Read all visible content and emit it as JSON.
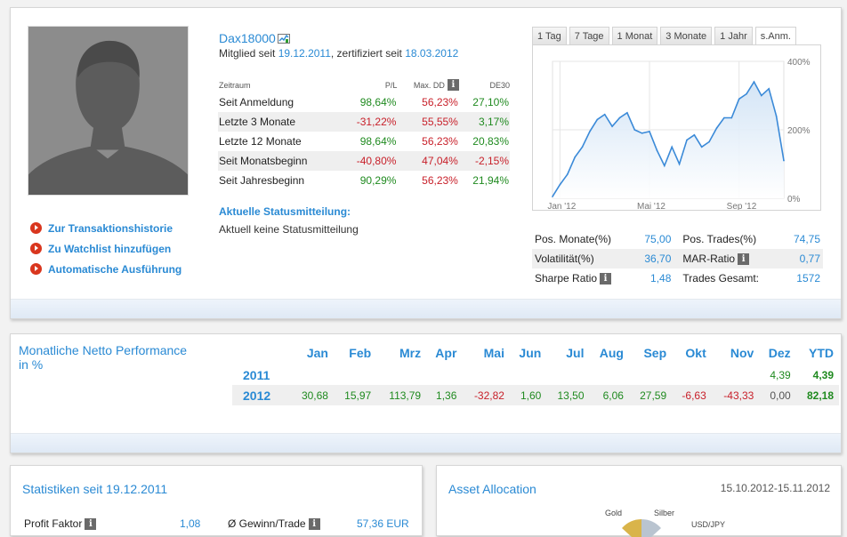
{
  "profile": {
    "name": "Dax18000",
    "member_prefix": "Mitglied seit",
    "member_since": "19.12.2011",
    "certified_prefix": ", zertifiziert seit",
    "certified_since": "18.03.2012",
    "links": [
      "Zur Transaktionshistorie",
      "Zu Watchlist hinzufügen",
      "Automatische Ausführung"
    ],
    "perf_table": {
      "headers": [
        "Zeitraum",
        "P/L",
        "Max. DD",
        "DE30"
      ],
      "rows": [
        {
          "label": "Seit Anmeldung",
          "pl": "98,64%",
          "maxdd": "56,23%",
          "de30": "27,10%"
        },
        {
          "label": "Letzte 3 Monate",
          "pl": "-31,22%",
          "maxdd": "55,55%",
          "de30": "3,17%"
        },
        {
          "label": "Letzte 12 Monate",
          "pl": "98,64%",
          "maxdd": "56,23%",
          "de30": "20,83%"
        },
        {
          "label": "Seit Monatsbeginn",
          "pl": "-40,80%",
          "maxdd": "47,04%",
          "de30": "-2,15%"
        },
        {
          "label": "Seit Jahresbeginn",
          "pl": "90,29%",
          "maxdd": "56,23%",
          "de30": "21,94%"
        }
      ]
    },
    "status_title": "Aktuelle Statusmitteilung:",
    "status_text": "Aktuell keine Statusmitteilung"
  },
  "chart_tabs": [
    "1 Tag",
    "7 Tage",
    "1 Monat",
    "3 Monate",
    "1 Jahr",
    "s.Anm."
  ],
  "chart_active_tab": 5,
  "chart_data": {
    "type": "area",
    "x_tick_labels": [
      "Jan '12",
      "Mai '12",
      "Sep '12"
    ],
    "y_tick_labels": [
      "400%",
      "200%",
      "0%"
    ],
    "ylim": [
      0,
      400
    ],
    "x": [
      "Dez '11",
      "Jan '12",
      "Jan '12",
      "Jan '12",
      "Feb '12",
      "Feb '12",
      "Feb '12",
      "Mär '12",
      "Mär '12",
      "Apr '12",
      "Apr '12",
      "Apr '12",
      "Mai '12",
      "Mai '12",
      "Mai '12",
      "Jun '12",
      "Jun '12",
      "Jun '12",
      "Jul '12",
      "Jul '12",
      "Jul '12",
      "Aug '12",
      "Aug '12",
      "Aug '12",
      "Sep '12",
      "Sep '12",
      "Sep '12",
      "Okt '12",
      "Okt '12",
      "Okt '12",
      "Nov '12",
      "Nov '12"
    ],
    "values": [
      5,
      40,
      70,
      120,
      150,
      195,
      230,
      245,
      210,
      235,
      250,
      200,
      190,
      195,
      140,
      95,
      150,
      100,
      170,
      185,
      150,
      165,
      205,
      235,
      235,
      290,
      305,
      340,
      300,
      320,
      240,
      110
    ],
    "line_color": "#3b8ad8",
    "grid": true
  },
  "stats": {
    "rows": [
      {
        "l1": "Pos. Monate(%)",
        "v1": "75,00",
        "l2": "Pos. Trades(%)",
        "v2": "74,75"
      },
      {
        "l1": "Volatilität(%)",
        "v1": "36,70",
        "l2": "MAR-Ratio",
        "v2": "0,77"
      },
      {
        "l1": "Sharpe Ratio",
        "v1": "1,48",
        "l2": "Trades Gesamt:",
        "v2": "1572"
      }
    ]
  },
  "monthly": {
    "title": "Monatliche Netto Performance in %",
    "headers": [
      "Jan",
      "Feb",
      "Mrz",
      "Apr",
      "Mai",
      "Jun",
      "Jul",
      "Aug",
      "Sep",
      "Okt",
      "Nov",
      "Dez",
      "YTD"
    ],
    "rows": [
      {
        "year": "2011",
        "values": [
          "",
          "",
          "",
          "",
          "",
          "",
          "",
          "",
          "",
          "",
          "",
          "4,39"
        ],
        "ytd": "4,39"
      },
      {
        "year": "2012",
        "values": [
          "30,68",
          "15,97",
          "113,79",
          "1,36",
          "-32,82",
          "1,60",
          "13,50",
          "6,06",
          "27,59",
          "-6,63",
          "-43,33",
          "0,00"
        ],
        "ytd": "82,18"
      }
    ]
  },
  "stats_panel": {
    "title": "Statistiken seit 19.12.2011",
    "profit_label": "Profit Faktor",
    "profit_value": "1,08",
    "gain_label": "Ø Gewinn/Trade",
    "gain_value": "57,36 EUR"
  },
  "alloc_panel": {
    "title": "Asset Allocation",
    "range": "15.10.2012-15.11.2012",
    "labels": [
      "Gold",
      "Silber",
      "USD/JPY"
    ]
  },
  "colors": {
    "accent": "#2a8ad4",
    "positive": "#1f8a1f",
    "negative": "#c8202a"
  }
}
